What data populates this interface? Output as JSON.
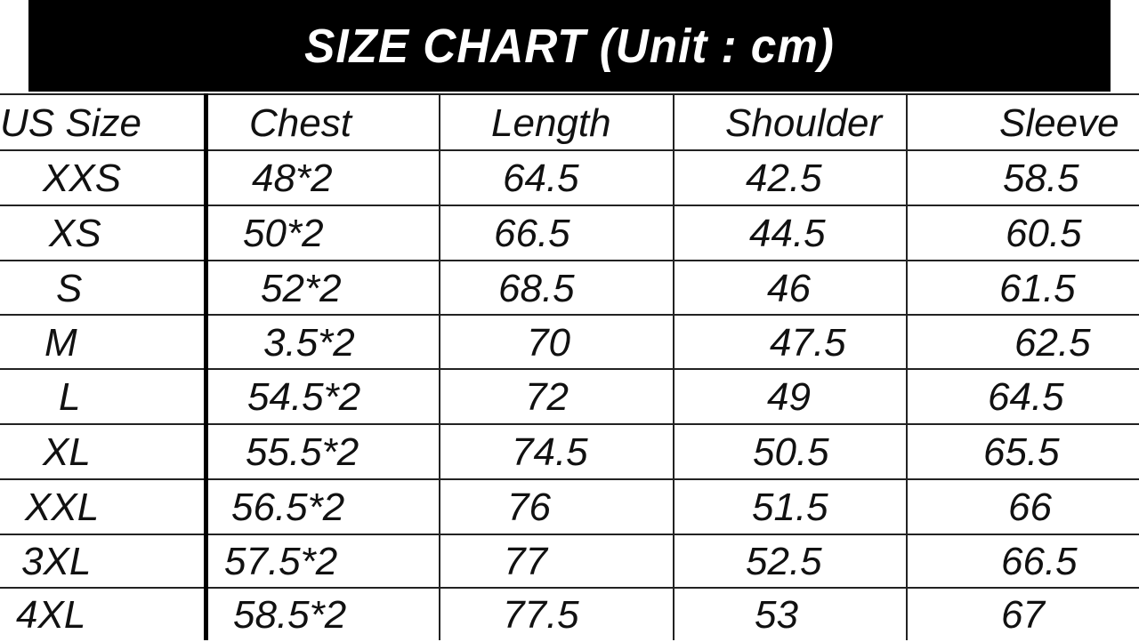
{
  "title": "SIZE CHART  (Unit : cm)",
  "table": {
    "headers": [
      "US Size",
      "Chest",
      "Length",
      "Shoulder",
      "Sleeve"
    ],
    "rows": [
      [
        "XXS",
        "48*2",
        "64.5",
        "42.5",
        "58.5"
      ],
      [
        "XS",
        "50*2",
        "66.5",
        "44.5",
        "60.5"
      ],
      [
        "S",
        "52*2",
        "68.5",
        "46",
        "61.5"
      ],
      [
        "M",
        "3.5*2",
        "70",
        "47.5",
        "62.5"
      ],
      [
        "L",
        "54.5*2",
        "72",
        "49",
        "64.5"
      ],
      [
        "XL",
        "55.5*2",
        "74.5",
        "50.5",
        "65.5"
      ],
      [
        "XXL",
        "56.5*2",
        "76",
        "51.5",
        "66"
      ],
      [
        "3XL",
        "57.5*2",
        "77",
        "52.5",
        "66.5"
      ],
      [
        "4XL",
        "58.5*2",
        "77.5",
        "53",
        "67"
      ]
    ]
  }
}
